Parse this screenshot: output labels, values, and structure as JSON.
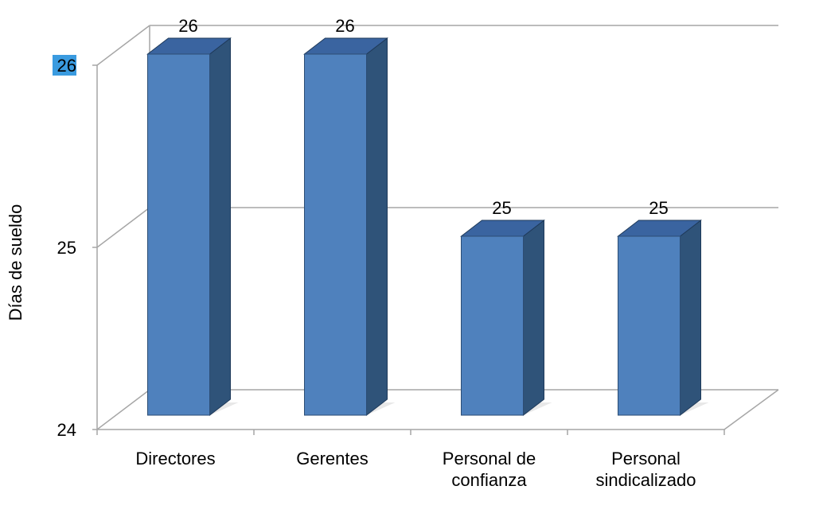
{
  "chart_data": {
    "type": "bar",
    "three_d": true,
    "categories": [
      "Directores",
      "Gerentes",
      "Personal de\nconfianza",
      "Personal\nsindicalizado"
    ],
    "values": [
      26,
      26,
      25,
      25
    ],
    "data_labels": [
      "26",
      "26",
      "25",
      "25"
    ],
    "xlabel": "",
    "ylabel": "Días de sueldo",
    "ylim": [
      24,
      26
    ],
    "yticks": [
      "24",
      "25",
      "26"
    ],
    "grid": true,
    "legend": "none",
    "colors": {
      "bar_front": "#4f81bd",
      "bar_side": "#2f5379",
      "bar_top": "#3a64a0",
      "grid": "#a6a6a6",
      "highlight": "#3a9be0"
    }
  }
}
